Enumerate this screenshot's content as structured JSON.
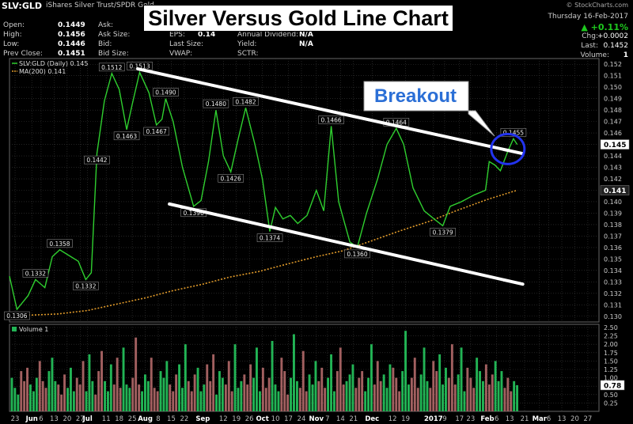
{
  "header": {
    "symbol": "SLV:GLD",
    "description": "iShares Silver Trust/SPDR Gold",
    "credit": "© StockCharts.com",
    "date": "Thursday  16-Feb-2017",
    "change_pct": "▲ +0.11%",
    "rows": [
      {
        "label": "Open:",
        "value": "0.1449",
        "label2": "Ask:",
        "value2": "",
        "label3": "",
        "value3": "",
        "rlabel": "Chg:",
        "rvalue": "+0.0002"
      },
      {
        "label": "High:",
        "value": "0.1456",
        "label2": "Ask Size:",
        "value2": "",
        "label3": "EPS:",
        "value3": "0.14",
        "rlabel": "",
        "rvalue": ""
      },
      {
        "label": "Low:",
        "value": "0.1446",
        "label2": "Bid:",
        "value2": "",
        "label3": "Last Size:",
        "value3": "",
        "rlabel": "Last:",
        "rvalue": "0.1452"
      },
      {
        "label": "Prev Close:",
        "value": "0.1451",
        "label2": "Bid Size:",
        "value2": "",
        "label3": "VWAP:",
        "value3": "",
        "rlabel": "Volume:",
        "rvalue": "1"
      }
    ],
    "extra": [
      {
        "label": "Annual Dividend:",
        "value": "N/A"
      },
      {
        "label": "Yield:",
        "value": "N/A"
      },
      {
        "label": "SCTR:",
        "value": ""
      }
    ]
  },
  "title": "Silver Versus Gold Line Chart",
  "annotation": {
    "text": "Breakout"
  },
  "colors": {
    "price_line": "#2fcf2f",
    "ma_line": "#e09a2a",
    "trend_lines": "#ffffff",
    "circle": "#2233ee",
    "vol_up": "#22b455",
    "vol_down": "#a26060",
    "grid": "#3a3a3a",
    "annotation_text": "#2b6fd6"
  },
  "chart_data": [
    {
      "type": "line",
      "legend": [
        {
          "name": "SLV:GLD (Daily) 0.145"
        },
        {
          "name": "MA(200) 0.141"
        }
      ],
      "x": {
        "range": [
          "2016-05-20",
          "2017-04-02"
        ],
        "ticks": [
          {
            "label": "23",
            "date": "2016-05-23"
          },
          {
            "label": "Jun",
            "date": "2016-06-01"
          },
          {
            "label": "6",
            "date": "2016-06-06"
          },
          {
            "label": "13",
            "date": "2016-06-13"
          },
          {
            "label": "20",
            "date": "2016-06-20"
          },
          {
            "label": "27",
            "date": "2016-06-27"
          },
          {
            "label": "Jul",
            "date": "2016-07-01"
          },
          {
            "label": "11",
            "date": "2016-07-11"
          },
          {
            "label": "18",
            "date": "2016-07-18"
          },
          {
            "label": "25",
            "date": "2016-07-25"
          },
          {
            "label": "Aug",
            "date": "2016-08-01"
          },
          {
            "label": "8",
            "date": "2016-08-08"
          },
          {
            "label": "15",
            "date": "2016-08-15"
          },
          {
            "label": "22",
            "date": "2016-08-22"
          },
          {
            "label": "Sep",
            "date": "2016-09-01"
          },
          {
            "label": "12",
            "date": "2016-09-12"
          },
          {
            "label": "19",
            "date": "2016-09-19"
          },
          {
            "label": "26",
            "date": "2016-09-26"
          },
          {
            "label": "Oct",
            "date": "2016-10-03"
          },
          {
            "label": "10",
            "date": "2016-10-10"
          },
          {
            "label": "17",
            "date": "2016-10-17"
          },
          {
            "label": "24",
            "date": "2016-10-24"
          },
          {
            "label": "Nov",
            "date": "2016-11-01"
          },
          {
            "label": "7",
            "date": "2016-11-07"
          },
          {
            "label": "14",
            "date": "2016-11-14"
          },
          {
            "label": "21",
            "date": "2016-11-21"
          },
          {
            "label": "Dec",
            "date": "2016-12-01"
          },
          {
            "label": "12",
            "date": "2016-12-12"
          },
          {
            "label": "19",
            "date": "2016-12-19"
          },
          {
            "label": "2017",
            "date": "2017-01-03"
          },
          {
            "label": "9",
            "date": "2017-01-09"
          },
          {
            "label": "17",
            "date": "2017-01-17"
          },
          {
            "label": "23",
            "date": "2017-01-23"
          },
          {
            "label": "Feb",
            "date": "2017-02-01"
          },
          {
            "label": "6",
            "date": "2017-02-06"
          },
          {
            "label": "13",
            "date": "2017-02-13"
          },
          {
            "label": "21",
            "date": "2017-02-21"
          },
          {
            "label": "Mar",
            "date": "2017-03-01"
          },
          {
            "label": "6",
            "date": "2017-03-06"
          },
          {
            "label": "13",
            "date": "2017-03-13"
          },
          {
            "label": "20",
            "date": "2017-03-20"
          },
          {
            "label": "27",
            "date": "2017-03-27"
          }
        ]
      },
      "y": {
        "range": [
          0.1295,
          0.1525
        ],
        "ticks": [
          0.13,
          0.131,
          0.132,
          0.133,
          0.134,
          0.135,
          0.136,
          0.137,
          0.138,
          0.139,
          0.14,
          0.141,
          0.142,
          0.143,
          0.144,
          0.145,
          0.146,
          0.147,
          0.148,
          0.149,
          0.15,
          0.151,
          0.152
        ]
      },
      "last_labels": [
        {
          "text": "0.145",
          "value": 0.145,
          "style": "price"
        },
        {
          "text": "0.141",
          "value": 0.141,
          "style": "ma"
        }
      ],
      "series": [
        {
          "name": "SLV:GLD (Daily) 0.145",
          "points": [
            [
              "2016-05-20",
              0.1335
            ],
            [
              "2016-05-24",
              0.1306
            ],
            [
              "2016-05-30",
              0.1318
            ],
            [
              "2016-06-03",
              0.1332
            ],
            [
              "2016-06-08",
              0.1325
            ],
            [
              "2016-06-12",
              0.1352
            ],
            [
              "2016-06-16",
              0.1358
            ],
            [
              "2016-06-22",
              0.1352
            ],
            [
              "2016-06-26",
              0.1348
            ],
            [
              "2016-06-30",
              0.1332
            ],
            [
              "2016-07-03",
              0.1338
            ],
            [
              "2016-07-06",
              0.1442
            ],
            [
              "2016-07-10",
              0.1488
            ],
            [
              "2016-07-14",
              0.1512
            ],
            [
              "2016-07-18",
              0.1498
            ],
            [
              "2016-07-22",
              0.1463
            ],
            [
              "2016-07-25",
              0.1485
            ],
            [
              "2016-07-29",
              0.1513
            ],
            [
              "2016-08-03",
              0.1495
            ],
            [
              "2016-08-07",
              0.1467
            ],
            [
              "2016-08-10",
              0.1472
            ],
            [
              "2016-08-12",
              0.149
            ],
            [
              "2016-08-16",
              0.147
            ],
            [
              "2016-08-21",
              0.143
            ],
            [
              "2016-08-27",
              0.1396
            ],
            [
              "2016-08-31",
              0.1401
            ],
            [
              "2016-09-04",
              0.1435
            ],
            [
              "2016-09-08",
              0.148
            ],
            [
              "2016-09-12",
              0.144
            ],
            [
              "2016-09-16",
              0.1426
            ],
            [
              "2016-09-20",
              0.1455
            ],
            [
              "2016-09-24",
              0.1482
            ],
            [
              "2016-09-29",
              0.145
            ],
            [
              "2016-10-03",
              0.142
            ],
            [
              "2016-10-07",
              0.1374
            ],
            [
              "2016-10-10",
              0.1395
            ],
            [
              "2016-10-14",
              0.1385
            ],
            [
              "2016-10-18",
              0.1388
            ],
            [
              "2016-10-22",
              0.1381
            ],
            [
              "2016-10-27",
              0.1388
            ],
            [
              "2016-11-01",
              0.141
            ],
            [
              "2016-11-05",
              0.1392
            ],
            [
              "2016-11-09",
              0.1466
            ],
            [
              "2016-11-13",
              0.14
            ],
            [
              "2016-11-19",
              0.1365
            ],
            [
              "2016-11-23",
              0.136
            ],
            [
              "2016-11-28",
              0.139
            ],
            [
              "2016-12-04",
              0.142
            ],
            [
              "2016-12-09",
              0.145
            ],
            [
              "2016-12-14",
              0.1464
            ],
            [
              "2016-12-18",
              0.145
            ],
            [
              "2016-12-23",
              0.1412
            ],
            [
              "2016-12-29",
              0.1392
            ],
            [
              "2017-01-04",
              0.1384
            ],
            [
              "2017-01-08",
              0.1379
            ],
            [
              "2017-01-12",
              0.1396
            ],
            [
              "2017-01-18",
              0.14
            ],
            [
              "2017-01-25",
              0.1406
            ],
            [
              "2017-01-31",
              0.141
            ],
            [
              "2017-02-02",
              0.1435
            ],
            [
              "2017-02-05",
              0.1432
            ],
            [
              "2017-02-08",
              0.1427
            ],
            [
              "2017-02-12",
              0.1444
            ],
            [
              "2017-02-15",
              0.1455
            ],
            [
              "2017-02-17",
              0.145
            ]
          ],
          "labels": [
            {
              "text": "0.1306",
              "date": "2016-05-24",
              "value": 0.1306,
              "pos": "below"
            },
            {
              "text": "0.1332",
              "date": "2016-06-03",
              "value": 0.1332,
              "pos": "above"
            },
            {
              "text": "0.1358",
              "date": "2016-06-16",
              "value": 0.1358,
              "pos": "above"
            },
            {
              "text": "0.1332",
              "date": "2016-06-30",
              "value": 0.1332,
              "pos": "below"
            },
            {
              "text": "0.1442",
              "date": "2016-07-06",
              "value": 0.1442,
              "pos": "below"
            },
            {
              "text": "0.1512",
              "date": "2016-07-14",
              "value": 0.1512,
              "pos": "above"
            },
            {
              "text": "0.1463",
              "date": "2016-07-22",
              "value": 0.1463,
              "pos": "below"
            },
            {
              "text": "0.1513",
              "date": "2016-07-29",
              "value": 0.1513,
              "pos": "above"
            },
            {
              "text": "0.1467",
              "date": "2016-08-07",
              "value": 0.1467,
              "pos": "below"
            },
            {
              "text": "0.1490",
              "date": "2016-08-12",
              "value": 0.149,
              "pos": "above"
            },
            {
              "text": "0.1396",
              "date": "2016-08-27",
              "value": 0.1396,
              "pos": "below"
            },
            {
              "text": "0.1480",
              "date": "2016-09-08",
              "value": 0.148,
              "pos": "above"
            },
            {
              "text": "0.1426",
              "date": "2016-09-16",
              "value": 0.1426,
              "pos": "below"
            },
            {
              "text": "0.1482",
              "date": "2016-09-24",
              "value": 0.1482,
              "pos": "above"
            },
            {
              "text": "0.1374",
              "date": "2016-10-07",
              "value": 0.1374,
              "pos": "below"
            },
            {
              "text": "0.1466",
              "date": "2016-11-09",
              "value": 0.1466,
              "pos": "above"
            },
            {
              "text": "0.1360",
              "date": "2016-11-23",
              "value": 0.136,
              "pos": "below"
            },
            {
              "text": "0.1464",
              "date": "2016-12-14",
              "value": 0.1464,
              "pos": "above"
            },
            {
              "text": "0.1379",
              "date": "2017-01-08",
              "value": 0.1379,
              "pos": "below"
            },
            {
              "text": "0.1455",
              "date": "2017-02-15",
              "value": 0.1455,
              "pos": "above"
            }
          ]
        },
        {
          "name": "MA(200) 0.141",
          "style": "dotted",
          "points": [
            [
              "2016-05-20",
              0.1302
            ],
            [
              "2016-06-01",
              0.1301
            ],
            [
              "2016-06-15",
              0.1302
            ],
            [
              "2016-07-01",
              0.1305
            ],
            [
              "2016-07-15",
              0.131
            ],
            [
              "2016-08-01",
              0.1316
            ],
            [
              "2016-08-15",
              0.1322
            ],
            [
              "2016-09-01",
              0.1328
            ],
            [
              "2016-09-15",
              0.1334
            ],
            [
              "2016-10-01",
              0.1339
            ],
            [
              "2016-10-15",
              0.1345
            ],
            [
              "2016-11-01",
              0.1352
            ],
            [
              "2016-11-15",
              0.1357
            ],
            [
              "2016-12-01",
              0.1366
            ],
            [
              "2016-12-15",
              0.1374
            ],
            [
              "2017-01-01",
              0.1383
            ],
            [
              "2017-01-15",
              0.1392
            ],
            [
              "2017-02-01",
              0.1402
            ],
            [
              "2017-02-17",
              0.141
            ]
          ]
        }
      ],
      "trend_lines": [
        {
          "name": "upper-trend",
          "from": [
            "2016-07-28",
            0.1516
          ],
          "to": [
            "2017-02-20",
            0.1442
          ]
        },
        {
          "name": "lower-trend",
          "from": [
            "2016-08-14",
            0.1398
          ],
          "to": [
            "2017-02-20",
            0.1328
          ]
        }
      ],
      "highlight_circle": {
        "date": "2017-02-12",
        "value": 0.1446
      },
      "grid": true
    },
    {
      "type": "bar",
      "legend": [
        {
          "name": "Volume 1"
        }
      ],
      "y": {
        "range": [
          0,
          2.5
        ],
        "ticks": [
          0.25,
          0.5,
          0.75,
          1.0,
          1.25,
          1.5,
          1.75,
          2.0,
          2.25,
          2.5
        ]
      },
      "last_label": {
        "text": "0.78",
        "value": 0.78
      },
      "values": [
        1.0,
        0.7,
        0.5,
        1.2,
        0.9,
        1.3,
        0.8,
        0.6,
        1.0,
        1.5,
        0.9,
        0.7,
        1.2,
        1.6,
        0.9,
        0.8,
        0.5,
        1.1,
        0.7,
        1.3,
        0.6,
        1.0,
        0.8,
        1.5,
        0.6,
        1.7,
        0.9,
        0.5,
        1.2,
        1.8,
        0.9,
        0.6,
        1.4,
        0.8,
        1.6,
        0.7,
        1.9,
        0.8,
        0.7,
        1.0,
        2.2,
        0.8,
        0.6,
        1.1,
        0.9,
        1.6,
        0.7,
        0.6,
        1.2,
        1.0,
        1.5,
        0.8,
        0.6,
        1.1,
        1.4,
        0.7,
        2.0,
        0.9,
        0.6,
        1.1,
        1.3,
        0.6,
        0.8,
        1.4,
        0.9,
        1.7,
        0.5,
        1.2,
        1.0,
        0.8,
        1.5,
        0.6,
        2.0,
        0.7,
        0.9,
        1.1,
        0.8,
        1.4,
        1.0,
        1.9,
        0.6,
        1.3,
        0.7,
        1.0,
        2.1,
        0.8,
        0.6,
        1.6,
        1.2,
        0.5,
        1.0,
        2.3,
        0.9,
        0.7,
        1.8,
        0.6,
        1.1,
        0.8,
        1.5,
        0.9,
        1.3,
        0.7,
        1.0,
        1.7,
        0.6,
        1.2,
        1.9,
        0.8,
        0.9,
        1.1,
        1.4,
        0.7,
        1.0,
        1.2,
        0.6,
        1.0,
        2.0,
        0.8,
        1.5,
        0.9,
        1.1,
        0.7,
        1.4,
        1.3,
        1.0,
        0.6,
        1.2,
        2.4,
        0.8,
        1.0,
        1.6,
        0.7,
        1.1,
        1.9,
        0.9,
        0.7,
        1.5,
        1.2,
        1.7,
        0.8,
        1.3,
        1.0,
        2.0,
        0.8,
        1.1,
        1.9,
        0.6,
        1.3,
        1.0,
        0.7,
        1.6,
        1.2,
        0.9,
        1.4,
        0.8,
        1.1,
        1.5,
        0.9,
        1.2,
        0.7,
        1.0,
        0.6,
        0.9,
        0.78
      ],
      "colors_up_down": "alternating",
      "grid": true
    }
  ]
}
